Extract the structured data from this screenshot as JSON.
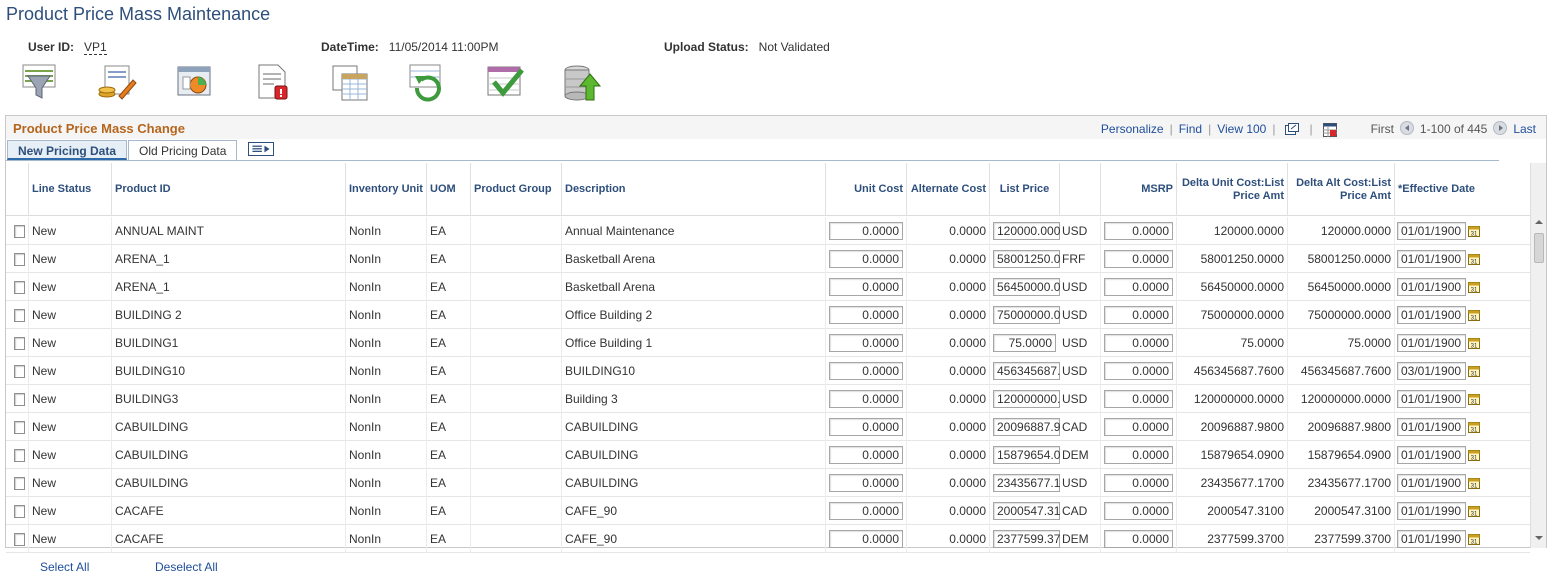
{
  "page": {
    "title": "Product Price Mass Maintenance",
    "user_id_label": "User ID:",
    "user_id": "VP1",
    "datetime_label": "DateTime:",
    "datetime": "11/05/2014 11:00PM",
    "upload_status_label": "Upload Status:",
    "upload_status": "Not Validated"
  },
  "toolbar": [
    {
      "name": "filter-icon"
    },
    {
      "name": "edit-prices-icon"
    },
    {
      "name": "chart-icon"
    },
    {
      "name": "report-icon"
    },
    {
      "name": "spreadsheet-icon"
    },
    {
      "name": "refresh-icon"
    },
    {
      "name": "validate-icon"
    },
    {
      "name": "upload-icon"
    }
  ],
  "grid": {
    "title": "Product Price Mass Change",
    "nav": {
      "personalize": "Personalize",
      "find": "Find",
      "view": "View 100",
      "first": "First",
      "range": "1-100 of 445",
      "last": "Last"
    },
    "tabs": [
      "New Pricing Data",
      "Old Pricing Data"
    ],
    "columns": {
      "line_status": "Line Status",
      "product_id": "Product ID",
      "inventory_unit": "Inventory Unit",
      "uom": "UOM",
      "product_group": "Product Group",
      "description": "Description",
      "unit_cost": "Unit Cost",
      "alternate_cost": "Alternate Cost",
      "list_price": "List Price",
      "msrp": "MSRP",
      "delta_unit_cost": "Delta Unit Cost:List Price Amt",
      "delta_alt_cost": "Delta Alt Cost:List Price Amt",
      "effective_date": "*Effective Date"
    },
    "rows": [
      {
        "status": "New",
        "product_id": "ANNUAL MAINT",
        "inv": "NonIn",
        "uom": "EA",
        "group": "",
        "desc": "Annual Maintenance",
        "unit_cost": "0.0000",
        "alt_cost": "0.0000",
        "list_price": "120000.000",
        "currency": "USD",
        "msrp": "0.0000",
        "delta_unit": "120000.0000",
        "delta_alt": "120000.0000",
        "eff_date": "01/01/1900"
      },
      {
        "status": "New",
        "product_id": "ARENA_1",
        "inv": "NonIn",
        "uom": "EA",
        "group": "",
        "desc": "Basketball Arena",
        "unit_cost": "0.0000",
        "alt_cost": "0.0000",
        "list_price": "58001250.0",
        "currency": "FRF",
        "msrp": "0.0000",
        "delta_unit": "58001250.0000",
        "delta_alt": "58001250.0000",
        "eff_date": "01/01/1900"
      },
      {
        "status": "New",
        "product_id": "ARENA_1",
        "inv": "NonIn",
        "uom": "EA",
        "group": "",
        "desc": "Basketball Arena",
        "unit_cost": "0.0000",
        "alt_cost": "0.0000",
        "list_price": "56450000.0",
        "currency": "USD",
        "msrp": "0.0000",
        "delta_unit": "56450000.0000",
        "delta_alt": "56450000.0000",
        "eff_date": "01/01/1900"
      },
      {
        "status": "New",
        "product_id": "BUILDING 2",
        "inv": "NonIn",
        "uom": "EA",
        "group": "",
        "desc": "Office Building 2",
        "unit_cost": "0.0000",
        "alt_cost": "0.0000",
        "list_price": "75000000.0",
        "currency": "USD",
        "msrp": "0.0000",
        "delta_unit": "75000000.0000",
        "delta_alt": "75000000.0000",
        "eff_date": "01/01/1900"
      },
      {
        "status": "New",
        "product_id": "BUILDING1",
        "inv": "NonIn",
        "uom": "EA",
        "group": "",
        "desc": "Office Building 1",
        "unit_cost": "0.0000",
        "alt_cost": "0.0000",
        "list_price": "75.0000",
        "currency": "USD",
        "msrp": "0.0000",
        "delta_unit": "75.0000",
        "delta_alt": "75.0000",
        "eff_date": "01/01/1900"
      },
      {
        "status": "New",
        "product_id": "BUILDING10",
        "inv": "NonIn",
        "uom": "EA",
        "group": "",
        "desc": "BUILDING10",
        "unit_cost": "0.0000",
        "alt_cost": "0.0000",
        "list_price": "456345687.",
        "currency": "USD",
        "msrp": "0.0000",
        "delta_unit": "456345687.7600",
        "delta_alt": "456345687.7600",
        "eff_date": "03/01/1900"
      },
      {
        "status": "New",
        "product_id": "BUILDING3",
        "inv": "NonIn",
        "uom": "EA",
        "group": "",
        "desc": "Building 3",
        "unit_cost": "0.0000",
        "alt_cost": "0.0000",
        "list_price": "120000000.",
        "currency": "USD",
        "msrp": "0.0000",
        "delta_unit": "120000000.0000",
        "delta_alt": "120000000.0000",
        "eff_date": "01/01/1900"
      },
      {
        "status": "New",
        "product_id": "CABUILDING",
        "inv": "NonIn",
        "uom": "EA",
        "group": "",
        "desc": "CABUILDING",
        "unit_cost": "0.0000",
        "alt_cost": "0.0000",
        "list_price": "20096887.9",
        "currency": "CAD",
        "msrp": "0.0000",
        "delta_unit": "20096887.9800",
        "delta_alt": "20096887.9800",
        "eff_date": "01/01/1900"
      },
      {
        "status": "New",
        "product_id": "CABUILDING",
        "inv": "NonIn",
        "uom": "EA",
        "group": "",
        "desc": "CABUILDING",
        "unit_cost": "0.0000",
        "alt_cost": "0.0000",
        "list_price": "15879654.0",
        "currency": "DEM",
        "msrp": "0.0000",
        "delta_unit": "15879654.0900",
        "delta_alt": "15879654.0900",
        "eff_date": "01/01/1900"
      },
      {
        "status": "New",
        "product_id": "CABUILDING",
        "inv": "NonIn",
        "uom": "EA",
        "group": "",
        "desc": "CABUILDING",
        "unit_cost": "0.0000",
        "alt_cost": "0.0000",
        "list_price": "23435677.1",
        "currency": "USD",
        "msrp": "0.0000",
        "delta_unit": "23435677.1700",
        "delta_alt": "23435677.1700",
        "eff_date": "01/01/1900"
      },
      {
        "status": "New",
        "product_id": "CACAFE",
        "inv": "NonIn",
        "uom": "EA",
        "group": "",
        "desc": "CAFE_90",
        "unit_cost": "0.0000",
        "alt_cost": "0.0000",
        "list_price": "2000547.31",
        "currency": "CAD",
        "msrp": "0.0000",
        "delta_unit": "2000547.3100",
        "delta_alt": "2000547.3100",
        "eff_date": "01/01/1990"
      },
      {
        "status": "New",
        "product_id": "CACAFE",
        "inv": "NonIn",
        "uom": "EA",
        "group": "",
        "desc": "CAFE_90",
        "unit_cost": "0.0000",
        "alt_cost": "0.0000",
        "list_price": "2377599.37",
        "currency": "DEM",
        "msrp": "0.0000",
        "delta_unit": "2377599.3700",
        "delta_alt": "2377599.3700",
        "eff_date": "01/01/1990"
      }
    ]
  },
  "footer": {
    "select_all": "Select All",
    "deselect_all": "Deselect All"
  }
}
